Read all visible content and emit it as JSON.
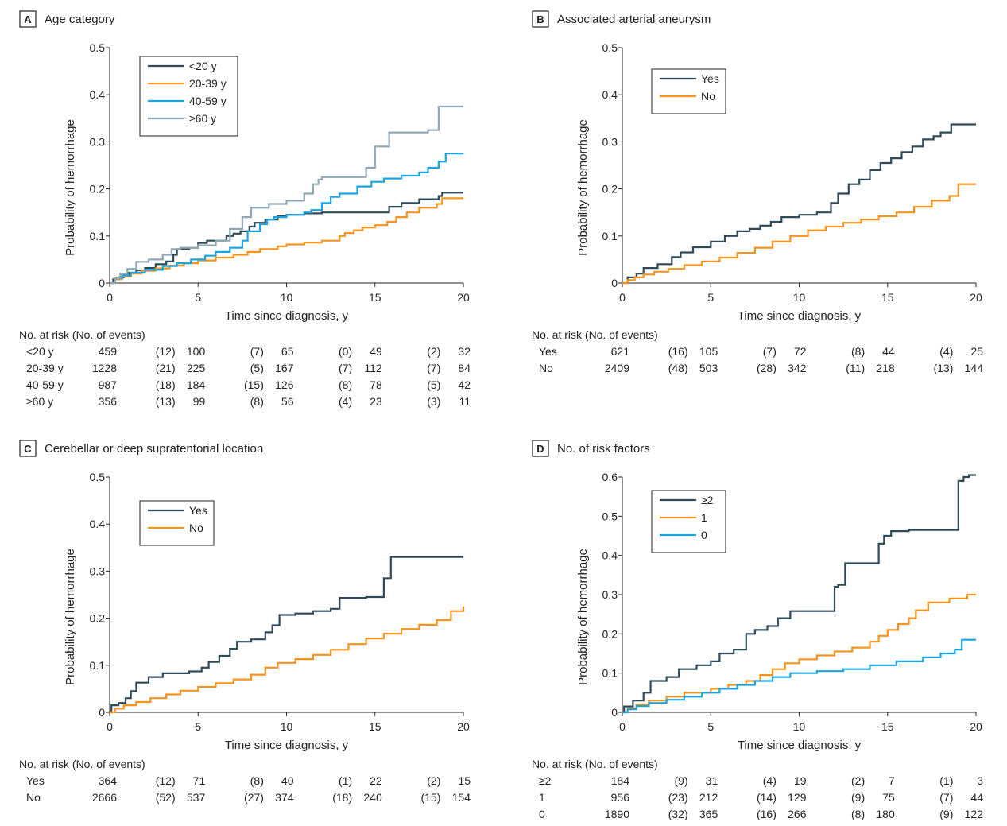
{
  "colors": {
    "dark": "#2f4b59",
    "orange": "#f7941d",
    "blue": "#1ba5e0",
    "gray": "#8fa8b3"
  },
  "chart_data": [
    {
      "type": "line",
      "step": true,
      "panel_letter": "A",
      "title": "Age category",
      "xlabel": "Time since diagnosis, y",
      "ylabel": "Probability of hemorrhage",
      "xlim": [
        0,
        20
      ],
      "ylim": [
        0,
        0.5
      ],
      "xticks": [
        0,
        5,
        10,
        15,
        20
      ],
      "yticks": [
        0,
        0.1,
        0.2,
        0.3,
        0.4,
        0.5
      ],
      "ytick_labels": [
        "0",
        "0.1",
        "0.2",
        "0.3",
        "0.4",
        "0.5"
      ],
      "grid": false,
      "legend_position": "top-left",
      "series": [
        {
          "name": "<20 y",
          "color": "#2f4b59",
          "x": [
            0,
            0.2,
            0.5,
            0.8,
            1.1,
            1.5,
            2.0,
            2.6,
            3.2,
            3.6,
            3.8,
            4.5,
            5.0,
            5.5,
            6.0,
            6.6,
            7.0,
            7.4,
            7.9,
            8.2,
            8.8,
            9.5,
            10.0,
            11.0,
            12.0,
            15.5,
            15.8,
            16.5,
            17.5,
            18.6,
            18.8,
            20.0
          ],
          "y": [
            0,
            0.008,
            0.012,
            0.017,
            0.022,
            0.027,
            0.032,
            0.04,
            0.046,
            0.06,
            0.072,
            0.075,
            0.085,
            0.09,
            0.09,
            0.1,
            0.105,
            0.11,
            0.12,
            0.128,
            0.135,
            0.142,
            0.145,
            0.148,
            0.15,
            0.15,
            0.162,
            0.17,
            0.178,
            0.185,
            0.192,
            0.192
          ]
        },
        {
          "name": "20-39 y",
          "color": "#f7941d",
          "x": [
            0,
            0.3,
            0.7,
            1.2,
            1.8,
            2.6,
            3.4,
            4.2,
            5.0,
            6.0,
            7.0,
            7.8,
            8.5,
            9.5,
            10.0,
            11.0,
            12.0,
            13.0,
            13.3,
            13.8,
            14.3,
            15.0,
            15.7,
            16.2,
            16.8,
            17.5,
            18.5,
            18.8,
            20.0
          ],
          "y": [
            0,
            0.008,
            0.014,
            0.02,
            0.026,
            0.031,
            0.037,
            0.042,
            0.048,
            0.054,
            0.06,
            0.066,
            0.072,
            0.078,
            0.082,
            0.086,
            0.09,
            0.1,
            0.106,
            0.112,
            0.118,
            0.123,
            0.13,
            0.14,
            0.15,
            0.16,
            0.168,
            0.18,
            0.18
          ]
        },
        {
          "name": "40-59 y",
          "color": "#1ba5e0",
          "x": [
            0,
            0.3,
            0.7,
            1.2,
            2.0,
            3.0,
            3.8,
            4.6,
            5.4,
            6.0,
            6.8,
            7.5,
            7.8,
            8.5,
            8.9,
            9.3,
            10.0,
            11.0,
            11.4,
            12.0,
            12.5,
            13.0,
            14.0,
            14.8,
            15.5,
            16.5,
            17.5,
            18.0,
            18.6,
            19.0,
            20.0
          ],
          "y": [
            0,
            0.01,
            0.016,
            0.022,
            0.028,
            0.036,
            0.042,
            0.05,
            0.058,
            0.066,
            0.075,
            0.09,
            0.11,
            0.125,
            0.135,
            0.14,
            0.145,
            0.15,
            0.155,
            0.17,
            0.183,
            0.19,
            0.205,
            0.215,
            0.222,
            0.228,
            0.235,
            0.245,
            0.258,
            0.275,
            0.275
          ]
        },
        {
          "name": "≥60 y",
          "color": "#8fa8b3",
          "x": [
            0,
            0.3,
            0.6,
            1.0,
            1.5,
            2.2,
            3.0,
            3.5,
            4.0,
            5.0,
            6.0,
            6.8,
            7.5,
            8.0,
            9.0,
            10.0,
            11.0,
            11.5,
            11.8,
            12.0,
            14.5,
            15.0,
            15.8,
            18.0,
            18.6,
            20.0
          ],
          "y": [
            0,
            0.01,
            0.02,
            0.03,
            0.045,
            0.05,
            0.06,
            0.072,
            0.075,
            0.08,
            0.09,
            0.115,
            0.14,
            0.16,
            0.168,
            0.175,
            0.19,
            0.21,
            0.22,
            0.225,
            0.245,
            0.29,
            0.32,
            0.325,
            0.375,
            0.375
          ]
        }
      ],
      "risk_table": {
        "header": "No. at risk (No. of events)",
        "rows": [
          {
            "label": "<20 y",
            "values": [
              "459",
              "(12)",
              "100",
              "(7)",
              "65",
              "(0)",
              "49",
              "(2)",
              "32"
            ]
          },
          {
            "label": "20-39 y",
            "values": [
              "1228",
              "(21)",
              "225",
              "(5)",
              "167",
              "(7)",
              "112",
              "(7)",
              "84"
            ]
          },
          {
            "label": "40-59 y",
            "values": [
              "987",
              "(18)",
              "184",
              "(15)",
              "126",
              "(8)",
              "78",
              "(5)",
              "42"
            ]
          },
          {
            "label": "≥60 y",
            "values": [
              "356",
              "(13)",
              "99",
              "(8)",
              "56",
              "(4)",
              "23",
              "(3)",
              "11"
            ]
          }
        ]
      }
    },
    {
      "type": "line",
      "step": true,
      "panel_letter": "B",
      "title": "Associated arterial aneurysm",
      "xlabel": "Time since diagnosis, y",
      "ylabel": "Probability of hemorrhage",
      "xlim": [
        0,
        20
      ],
      "ylim": [
        0,
        0.5
      ],
      "xticks": [
        0,
        5,
        10,
        15,
        20
      ],
      "yticks": [
        0,
        0.1,
        0.2,
        0.3,
        0.4,
        0.5
      ],
      "ytick_labels": [
        "0",
        "0.1",
        "0.2",
        "0.3",
        "0.4",
        "0.5"
      ],
      "grid": false,
      "legend_position": "top-left",
      "series": [
        {
          "name": "Yes",
          "color": "#2f4b59",
          "x": [
            0,
            0.3,
            0.8,
            1.2,
            2.0,
            2.8,
            3.3,
            4.0,
            5.0,
            5.8,
            6.5,
            7.2,
            7.8,
            8.4,
            9.0,
            10.0,
            11.0,
            11.8,
            12.2,
            12.8,
            13.4,
            14.0,
            14.6,
            15.2,
            15.8,
            16.4,
            17.0,
            17.6,
            18.0,
            18.6,
            20.0
          ],
          "y": [
            0,
            0.012,
            0.02,
            0.032,
            0.04,
            0.055,
            0.065,
            0.076,
            0.088,
            0.1,
            0.11,
            0.115,
            0.122,
            0.13,
            0.14,
            0.145,
            0.15,
            0.17,
            0.19,
            0.21,
            0.22,
            0.24,
            0.255,
            0.265,
            0.278,
            0.29,
            0.305,
            0.312,
            0.32,
            0.337,
            0.337
          ]
        },
        {
          "name": "No",
          "color": "#f7941d",
          "x": [
            0,
            0.3,
            0.7,
            1.2,
            1.8,
            2.6,
            3.5,
            4.5,
            5.5,
            6.5,
            7.5,
            8.5,
            9.5,
            10.5,
            11.5,
            12.5,
            13.5,
            14.5,
            15.5,
            16.5,
            17.5,
            18.5,
            19.0,
            20.0
          ],
          "y": [
            0,
            0.006,
            0.012,
            0.018,
            0.024,
            0.03,
            0.038,
            0.046,
            0.054,
            0.064,
            0.075,
            0.088,
            0.1,
            0.112,
            0.12,
            0.128,
            0.135,
            0.142,
            0.15,
            0.162,
            0.175,
            0.185,
            0.21,
            0.21
          ]
        }
      ],
      "risk_table": {
        "header": "No. at risk (No. of events)",
        "rows": [
          {
            "label": "Yes",
            "values": [
              "621",
              "(16)",
              "105",
              "(7)",
              "72",
              "(8)",
              "44",
              "(4)",
              "25"
            ]
          },
          {
            "label": "No",
            "values": [
              "2409",
              "(48)",
              "503",
              "(28)",
              "342",
              "(11)",
              "218",
              "(13)",
              "144"
            ]
          }
        ]
      }
    },
    {
      "type": "line",
      "step": true,
      "panel_letter": "C",
      "title": "Cerebellar or deep supratentorial location",
      "xlabel": "Time since diagnosis, y",
      "ylabel": "Probability of hemorrhage",
      "xlim": [
        0,
        20
      ],
      "ylim": [
        0,
        0.5
      ],
      "xticks": [
        0,
        5,
        10,
        15,
        20
      ],
      "yticks": [
        0,
        0.1,
        0.2,
        0.3,
        0.4,
        0.5
      ],
      "ytick_labels": [
        "0",
        "0.1",
        "0.2",
        "0.3",
        "0.4",
        "0.5"
      ],
      "grid": false,
      "legend_position": "top-left",
      "series": [
        {
          "name": "Yes",
          "color": "#2f4b59",
          "x": [
            0,
            0.1,
            0.5,
            0.9,
            1.2,
            1.5,
            2.2,
            3.0,
            4.5,
            5.2,
            5.6,
            6.2,
            6.8,
            7.2,
            8.0,
            8.8,
            9.2,
            9.6,
            10.5,
            11.5,
            12.5,
            13.0,
            14.5,
            15.5,
            15.9,
            20.0
          ],
          "y": [
            0,
            0.015,
            0.02,
            0.03,
            0.045,
            0.063,
            0.075,
            0.083,
            0.087,
            0.095,
            0.107,
            0.12,
            0.135,
            0.15,
            0.155,
            0.17,
            0.185,
            0.207,
            0.21,
            0.215,
            0.22,
            0.243,
            0.245,
            0.285,
            0.33,
            0.33
          ]
        },
        {
          "name": "No",
          "color": "#f7941d",
          "x": [
            0,
            0.3,
            0.8,
            1.5,
            2.3,
            3.2,
            4.0,
            5.0,
            6.0,
            7.0,
            8.0,
            8.8,
            9.5,
            10.5,
            11.5,
            12.5,
            13.5,
            14.5,
            15.5,
            16.5,
            17.5,
            18.5,
            19.3,
            20.0
          ],
          "y": [
            0,
            0.008,
            0.015,
            0.022,
            0.03,
            0.038,
            0.046,
            0.054,
            0.062,
            0.07,
            0.08,
            0.095,
            0.105,
            0.113,
            0.122,
            0.133,
            0.145,
            0.157,
            0.167,
            0.177,
            0.186,
            0.196,
            0.215,
            0.225
          ]
        }
      ],
      "risk_table": {
        "header": "No. at risk (No. of events)",
        "rows": [
          {
            "label": "Yes",
            "values": [
              "364",
              "(12)",
              "71",
              "(8)",
              "40",
              "(1)",
              "22",
              "(2)",
              "15"
            ]
          },
          {
            "label": "No",
            "values": [
              "2666",
              "(52)",
              "537",
              "(27)",
              "374",
              "(18)",
              "240",
              "(15)",
              "154"
            ]
          }
        ]
      }
    },
    {
      "type": "line",
      "step": true,
      "panel_letter": "D",
      "title": "No. of risk factors",
      "xlabel": "Time since diagnosis, y",
      "ylabel": "Probability of hemorrhage",
      "xlim": [
        0,
        20
      ],
      "ylim": [
        0,
        0.6
      ],
      "xticks": [
        0,
        5,
        10,
        15,
        20
      ],
      "yticks": [
        0,
        0.1,
        0.2,
        0.3,
        0.4,
        0.5,
        0.6
      ],
      "ytick_labels": [
        "0",
        "0.1",
        "0.2",
        "0.3",
        "0.4",
        "0.5",
        "0.6"
      ],
      "grid": false,
      "legend_position": "top-left",
      "series": [
        {
          "name": "≥2",
          "color": "#2f4b59",
          "x": [
            0,
            0.1,
            0.6,
            1.2,
            1.6,
            2.5,
            3.2,
            4.2,
            5.0,
            5.5,
            6.3,
            7.0,
            7.5,
            8.2,
            8.8,
            9.5,
            12.0,
            12.2,
            12.6,
            14.5,
            14.8,
            15.2,
            16.2,
            19.0,
            19.3,
            19.6,
            20.0
          ],
          "y": [
            0,
            0.015,
            0.03,
            0.05,
            0.08,
            0.09,
            0.11,
            0.12,
            0.13,
            0.15,
            0.16,
            0.2,
            0.21,
            0.22,
            0.24,
            0.258,
            0.32,
            0.325,
            0.38,
            0.43,
            0.45,
            0.462,
            0.465,
            0.59,
            0.6,
            0.605,
            0.605
          ]
        },
        {
          "name": "1",
          "color": "#f7941d",
          "x": [
            0,
            0.3,
            0.8,
            1.5,
            2.5,
            3.5,
            5.0,
            6.0,
            7.0,
            7.8,
            8.5,
            9.2,
            10.0,
            11.0,
            12.0,
            13.0,
            14.0,
            14.5,
            15.0,
            15.6,
            16.2,
            16.6,
            17.3,
            18.5,
            19.5,
            20.0
          ],
          "y": [
            0,
            0.01,
            0.02,
            0.03,
            0.04,
            0.05,
            0.06,
            0.07,
            0.08,
            0.095,
            0.11,
            0.125,
            0.135,
            0.145,
            0.155,
            0.165,
            0.18,
            0.195,
            0.21,
            0.225,
            0.24,
            0.26,
            0.28,
            0.29,
            0.3,
            0.3
          ]
        },
        {
          "name": "0",
          "color": "#1ba5e0",
          "x": [
            0,
            0.3,
            0.8,
            1.5,
            2.5,
            3.5,
            4.5,
            5.5,
            6.5,
            7.5,
            8.5,
            9.5,
            11.0,
            12.5,
            14.0,
            15.5,
            17.0,
            18.0,
            18.8,
            19.2,
            20.0
          ],
          "y": [
            0,
            0.008,
            0.016,
            0.024,
            0.032,
            0.04,
            0.05,
            0.06,
            0.07,
            0.08,
            0.09,
            0.1,
            0.105,
            0.11,
            0.12,
            0.13,
            0.14,
            0.15,
            0.16,
            0.185,
            0.185
          ]
        }
      ],
      "risk_table": {
        "header": "No. at risk (No. of events)",
        "rows": [
          {
            "label": "≥2",
            "values": [
              "184",
              "(9)",
              "31",
              "(4)",
              "19",
              "(2)",
              "7",
              "(1)",
              "3"
            ]
          },
          {
            "label": "1",
            "values": [
              "956",
              "(23)",
              "212",
              "(14)",
              "129",
              "(9)",
              "75",
              "(7)",
              "44"
            ]
          },
          {
            "label": "0",
            "values": [
              "1890",
              "(32)",
              "365",
              "(16)",
              "266",
              "(8)",
              "180",
              "(9)",
              "122"
            ]
          }
        ]
      }
    }
  ]
}
